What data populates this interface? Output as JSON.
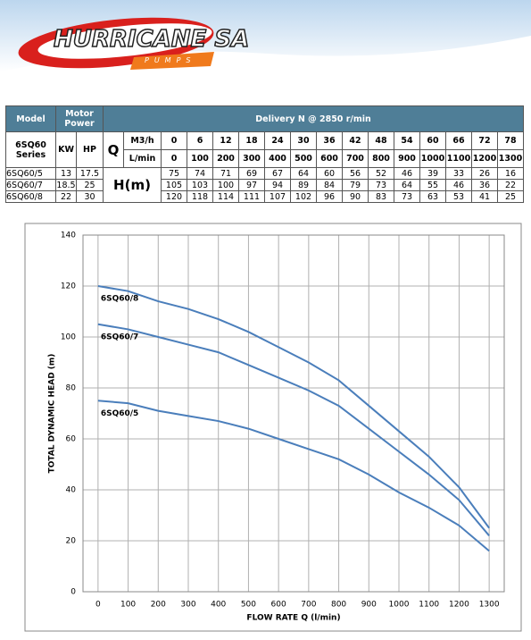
{
  "header": {
    "brand": "HURRICANE SA",
    "tagline": "PUMPS"
  },
  "table": {
    "model_header": "Model",
    "motor_header": "Motor Power",
    "delivery_header": "Delivery N @ 2850 r/min",
    "series_label": "6SQ60 Series",
    "kw_label": "KW",
    "hp_label": "HP",
    "q_label": "Q",
    "m3h_label": "M3/h",
    "lmin_label": "L/min",
    "head_label": "H(m)",
    "flow_m3h": [
      0,
      6,
      12,
      18,
      24,
      30,
      36,
      42,
      48,
      54,
      60,
      66,
      72,
      78
    ],
    "flow_lmin": [
      0,
      100,
      200,
      300,
      400,
      500,
      600,
      700,
      800,
      900,
      1000,
      1100,
      1200,
      1300
    ],
    "rows": [
      {
        "model": "6SQ60/5",
        "kw": 13,
        "hp": 17.5,
        "heads": [
          75,
          74,
          71,
          69,
          67,
          64,
          60,
          56,
          52,
          46,
          39,
          33,
          26,
          16
        ]
      },
      {
        "model": "6SQ60/7",
        "kw": 18.5,
        "hp": 25,
        "heads": [
          105,
          103,
          100,
          97,
          94,
          89,
          84,
          79,
          73,
          64,
          55,
          46,
          36,
          22
        ]
      },
      {
        "model": "6SQ60/8",
        "kw": 22,
        "hp": 30,
        "heads": [
          120,
          118,
          114,
          111,
          107,
          102,
          96,
          90,
          83,
          73,
          63,
          53,
          41,
          25
        ]
      }
    ]
  },
  "chart_data": {
    "type": "line",
    "x_label": "FLOW RATE Q (l/min)",
    "y_label": "TOTAL DYNAMIC HEAD (m)",
    "x": [
      0,
      100,
      200,
      300,
      400,
      500,
      600,
      700,
      800,
      900,
      1000,
      1100,
      1200,
      1300
    ],
    "xlim": [
      -50,
      1350
    ],
    "xticks": [
      0,
      100,
      200,
      300,
      400,
      500,
      600,
      700,
      800,
      900,
      1000,
      1100,
      1200,
      1300
    ],
    "ylim": [
      0,
      140
    ],
    "yticks": [
      0,
      20,
      40,
      60,
      80,
      100,
      120,
      140
    ],
    "grid": true,
    "series": [
      {
        "name": "6SQ60/8",
        "color": "#4a7ebb",
        "values": [
          120,
          118,
          114,
          111,
          107,
          102,
          96,
          90,
          83,
          73,
          63,
          53,
          41,
          25
        ]
      },
      {
        "name": "6SQ60/7",
        "color": "#4a7ebb",
        "values": [
          105,
          103,
          100,
          97,
          94,
          89,
          84,
          79,
          73,
          64,
          55,
          46,
          36,
          22
        ]
      },
      {
        "name": "6SQ60/5",
        "color": "#4a7ebb",
        "values": [
          75,
          74,
          71,
          69,
          67,
          64,
          60,
          56,
          52,
          46,
          39,
          33,
          26,
          16
        ]
      }
    ]
  }
}
